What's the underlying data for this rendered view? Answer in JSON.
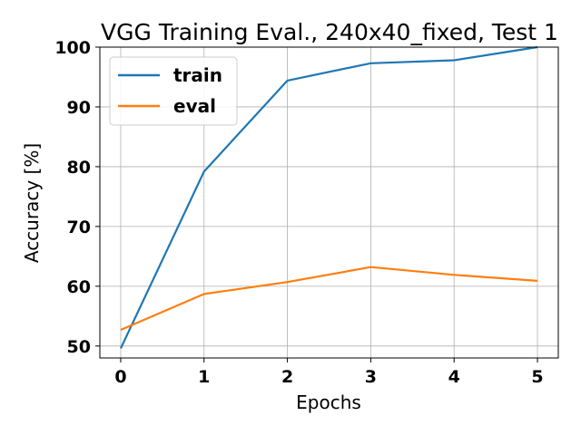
{
  "chart_data": {
    "type": "line",
    "title": "VGG Training Eval., 240x40_fixed, Test 1",
    "xlabel": "Epochs",
    "ylabel": "Accuracy [%]",
    "x": [
      0,
      1,
      2,
      3,
      4,
      5
    ],
    "xticks": [
      "0",
      "1",
      "2",
      "3",
      "4",
      "5"
    ],
    "yticks": [
      "50",
      "60",
      "70",
      "80",
      "90",
      "100"
    ],
    "xlim": [
      -0.25,
      5.25
    ],
    "ylim": [
      48.0,
      100.0
    ],
    "grid": true,
    "legend_position": "top-left",
    "series": [
      {
        "name": "train",
        "color": "#1f77b4",
        "values": [
          49.6,
          79.2,
          94.4,
          97.3,
          97.8,
          100.0
        ]
      },
      {
        "name": "eval",
        "color": "#ff7f0e",
        "values": [
          52.7,
          58.7,
          60.7,
          63.2,
          61.9,
          60.9
        ]
      }
    ]
  }
}
